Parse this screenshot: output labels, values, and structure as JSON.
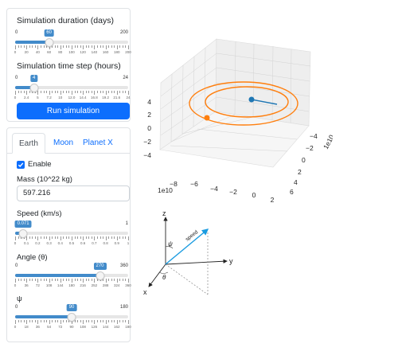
{
  "simulation": {
    "duration": {
      "label": "Simulation duration (days)",
      "min": 0,
      "max": 200,
      "value": 60,
      "min_label": "0",
      "max_label": "200",
      "value_label": "60",
      "ticks": [
        "0",
        "20",
        "40",
        "60",
        "80",
        "100",
        "120",
        "140",
        "160",
        "180",
        "200"
      ]
    },
    "timestep": {
      "label": "Simulation time step (hours)",
      "min": 0,
      "max": 24,
      "value": 4,
      "min_label": "0",
      "max_label": "24",
      "value_label": "4",
      "ticks": [
        "0",
        "2.4",
        "5",
        "7.2",
        "10",
        "12.0",
        "14.4",
        "16.8",
        "19.2",
        "21.6",
        "24"
      ]
    },
    "run_label": "Run simulation"
  },
  "body": {
    "tabs": [
      {
        "label": "Earth",
        "active": true
      },
      {
        "label": "Moon",
        "active": false
      },
      {
        "label": "Planet X",
        "active": false
      }
    ],
    "enable_label": "Enable",
    "enabled": true,
    "mass_label": "Mass (10^22 kg)",
    "mass_value": "597.216",
    "speed": {
      "label": "Speed (km/s)",
      "min": 0,
      "max": 1,
      "value": 0.071,
      "min_label": "0",
      "max_label": "1",
      "value_label": "0.071",
      "ticks": [
        "0",
        "0.1",
        "0.2",
        "0.3",
        "0.4",
        "0.5",
        "0.6",
        "0.7",
        "0.8",
        "0.9",
        "1"
      ]
    },
    "theta": {
      "label": "Angle (θ)",
      "min": 0,
      "max": 360,
      "value": 270,
      "min_label": "0",
      "max_label": "360",
      "value_label": "270",
      "ticks": [
        "0",
        "36",
        "72",
        "108",
        "144",
        "180",
        "216",
        "252",
        "288",
        "324",
        "360"
      ]
    },
    "phi": {
      "label": "ψ",
      "min": 0,
      "max": 180,
      "value": 90,
      "min_label": "0",
      "max_label": "180",
      "value_label": "90",
      "ticks": [
        "0",
        "18",
        "36",
        "54",
        "72",
        "90",
        "108",
        "126",
        "144",
        "162",
        "180"
      ]
    }
  },
  "plot3d": {
    "x_ticks": [
      "−8",
      "−6",
      "−4",
      "−2",
      "0",
      "2"
    ],
    "y_ticks": [
      "−4",
      "−2",
      "0",
      "2",
      "4",
      "6"
    ],
    "z_ticks": [
      "4",
      "2",
      "0",
      "−2",
      "−4"
    ],
    "x_offset": "1e10",
    "y_offset": "1e10",
    "colors": {
      "orbit": "#ff7f0e",
      "planet": "#1f77b4"
    }
  },
  "diagram": {
    "z_label": "z",
    "y_label": "y",
    "x_label": "x",
    "speed_label": "speed",
    "phi_label": "ψ",
    "theta_label": "θ",
    "colors": {
      "arrow": "#1a9be0"
    }
  }
}
